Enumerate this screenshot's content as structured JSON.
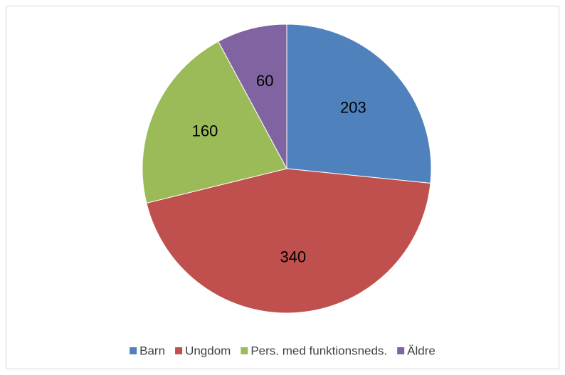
{
  "chart_data": {
    "type": "pie",
    "categories": [
      "Barn",
      "Ungdom",
      "Pers. med funktionsneds.",
      "Äldre"
    ],
    "values": [
      203,
      340,
      160,
      60
    ],
    "colors": [
      "#4f81bd",
      "#c0504d",
      "#9bbb59",
      "#8064a2"
    ],
    "legend": "bottom"
  }
}
